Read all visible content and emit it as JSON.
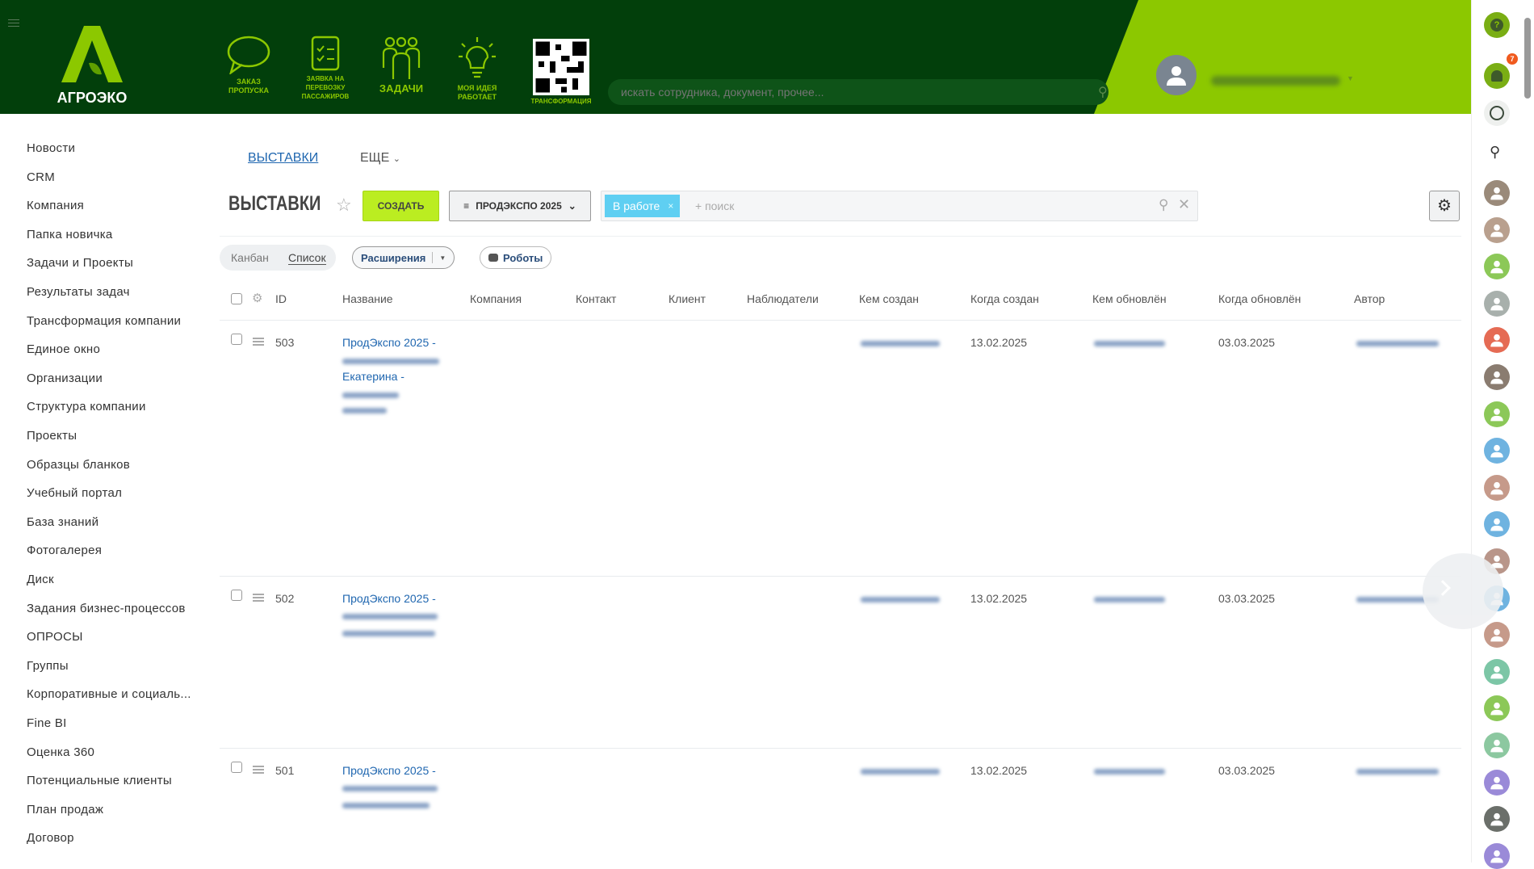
{
  "header": {
    "logo": "АГРОЭКО",
    "shortcuts": [
      {
        "label": "ЗАКАЗ ПРОПУСКА",
        "icon": "speech-bubble-icon"
      },
      {
        "label": "ЗАЯВКА НА ПЕРЕВОЗКУ ПАССАЖИРОВ",
        "icon": "checklist-icon"
      },
      {
        "label": "ЗАДАЧИ",
        "icon": "people-group-icon"
      },
      {
        "label": "МОЯ ИДЕЯ РАБОТАЕТ",
        "icon": "lightbulb-icon"
      },
      {
        "label": "ТРАНСФОРМАЦИЯ",
        "icon": "qr-code-icon"
      }
    ],
    "search_placeholder": "искать сотрудника, документ, прочее...",
    "notifications_count": "7",
    "colors": {
      "dark": "#023f0b",
      "accent": "#8cc800"
    }
  },
  "sidebar": {
    "items": [
      "Новости",
      "CRM",
      "Компания",
      "Папка новичка",
      "Задачи и Проекты",
      "Результаты задач",
      "Трансформация компании",
      "Единое окно",
      "Организации",
      "Структура компании",
      "Проекты",
      "Образцы бланков",
      "Учебный портал",
      "База знаний",
      "Фотогалерея",
      "Диск",
      "Задания бизнес-процессов",
      "ОПРОСЫ",
      "Группы",
      "Корпоративные и социаль...",
      "Fine BI",
      "Оценка 360",
      "Потенциальные клиенты",
      "План продаж",
      "Договор"
    ]
  },
  "tabs": {
    "active": "ВЫСТАВКИ",
    "more": "ЕЩЕ"
  },
  "toolbar": {
    "title": "ВЫСТАВКИ",
    "create": "СОЗДАТЬ",
    "filter_preset": "ПРОДЭКСПО 2025",
    "filter_tag": "В работе",
    "search_placeholder": "+ поиск"
  },
  "view": {
    "kanban": "Канбан",
    "list": "Список",
    "extensions": "Расширения",
    "robots": "Роботы"
  },
  "table": {
    "columns": [
      "ID",
      "Название",
      "Компания",
      "Контакт",
      "Клиент",
      "Наблюдатели",
      "Кем создан",
      "Когда создан",
      "Кем обновлён",
      "Когда обновлён",
      "Автор"
    ],
    "rows": [
      {
        "id": "503",
        "title": "ПродЭкспо 2025 -",
        "title2": "Екатерина -",
        "created": "13.02.2025",
        "updated": "03.03.2025"
      },
      {
        "id": "502",
        "title": "ПродЭкспо 2025 -",
        "created": "13.02.2025",
        "updated": "03.03.2025"
      },
      {
        "id": "501",
        "title": "ПродЭкспо 2025 -",
        "created": "13.02.2025",
        "updated": "03.03.2025"
      }
    ]
  }
}
